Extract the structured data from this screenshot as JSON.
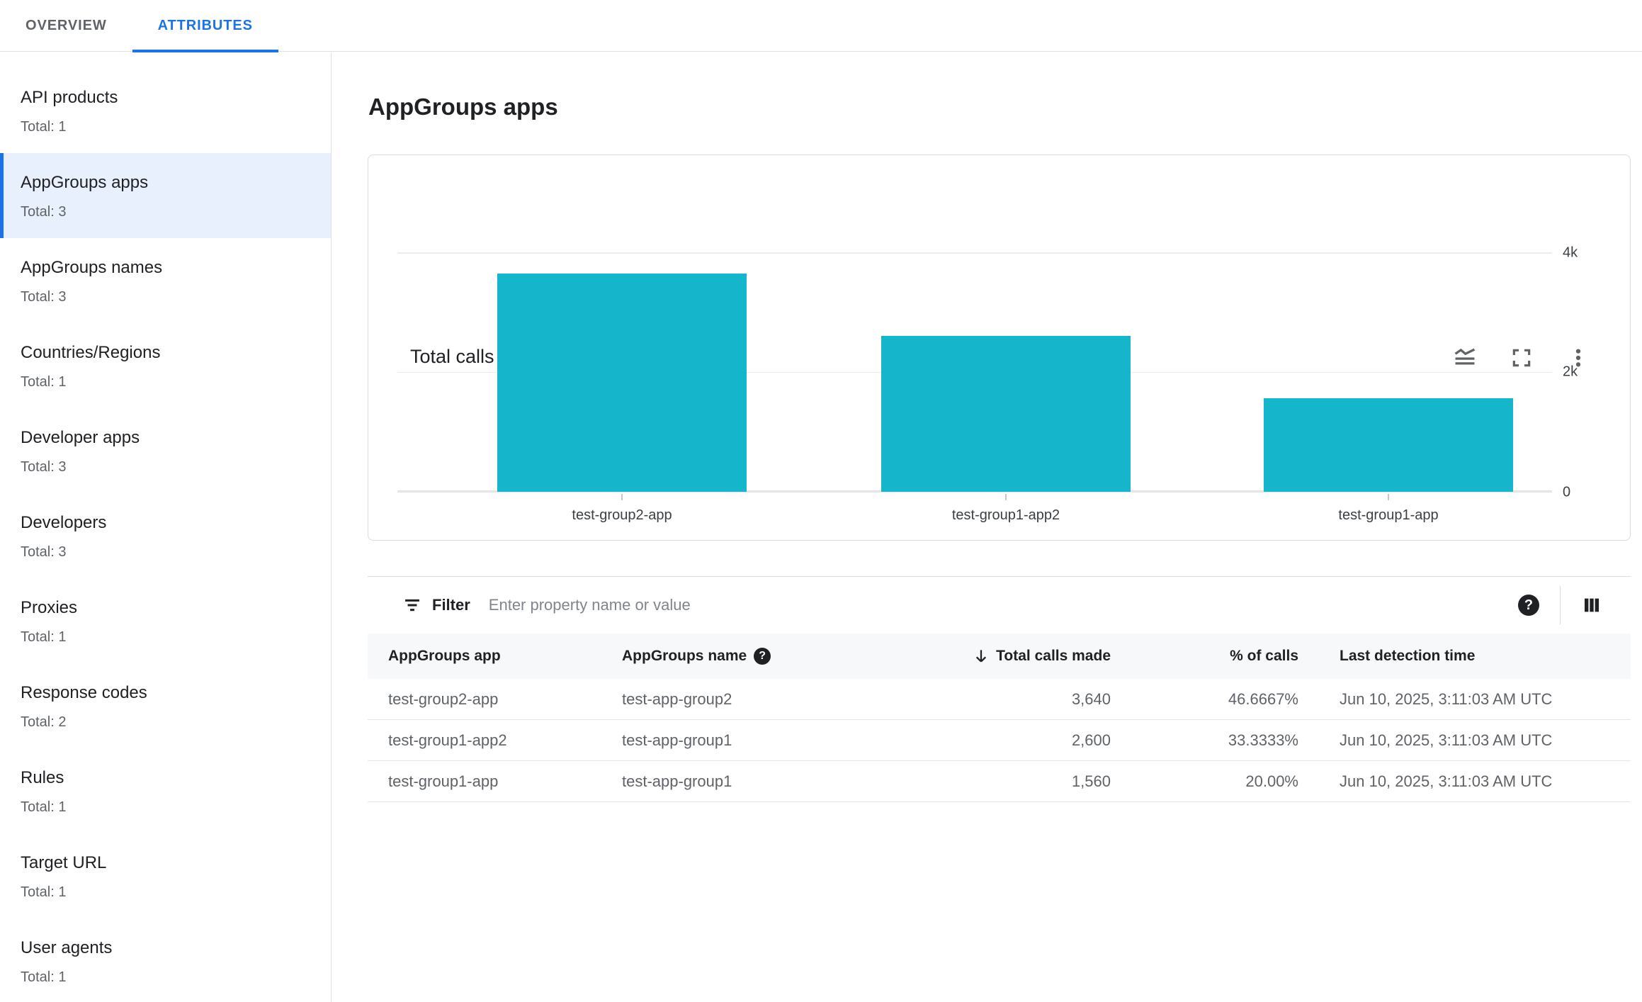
{
  "tabs": [
    {
      "label": "OVERVIEW",
      "active": false
    },
    {
      "label": "ATTRIBUTES",
      "active": true
    }
  ],
  "sidebar": {
    "items": [
      {
        "label": "API products",
        "total": "Total: 1",
        "selected": false
      },
      {
        "label": "AppGroups apps",
        "total": "Total: 3",
        "selected": true
      },
      {
        "label": "AppGroups names",
        "total": "Total: 3",
        "selected": false
      },
      {
        "label": "Countries/Regions",
        "total": "Total: 1",
        "selected": false
      },
      {
        "label": "Developer apps",
        "total": "Total: 3",
        "selected": false
      },
      {
        "label": "Developers",
        "total": "Total: 3",
        "selected": false
      },
      {
        "label": "Proxies",
        "total": "Total: 1",
        "selected": false
      },
      {
        "label": "Response codes",
        "total": "Total: 2",
        "selected": false
      },
      {
        "label": "Rules",
        "total": "Total: 1",
        "selected": false
      },
      {
        "label": "Target URL",
        "total": "Total: 1",
        "selected": false
      },
      {
        "label": "User agents",
        "total": "Total: 1",
        "selected": false
      }
    ]
  },
  "main": {
    "page_title": "AppGroups apps",
    "chart_card": {
      "title": "Total calls made",
      "icons": [
        "stacked-line-chart",
        "fullscreen",
        "more-vert"
      ]
    },
    "filter": {
      "label": "Filter",
      "placeholder": "Enter property name or value"
    },
    "table": {
      "columns": [
        "AppGroups app",
        "AppGroups name",
        "Total calls made",
        "% of calls",
        "Last detection time"
      ],
      "sorted_column": "Total calls made",
      "sort_direction": "descending",
      "rows": [
        {
          "app": "test-group2-app",
          "name": "test-app-group2",
          "calls": "3,640",
          "pct": "46.6667%",
          "time": "Jun 10, 2025, 3:11:03 AM UTC"
        },
        {
          "app": "test-group1-app2",
          "name": "test-app-group1",
          "calls": "2,600",
          "pct": "33.3333%",
          "time": "Jun 10, 2025, 3:11:03 AM UTC"
        },
        {
          "app": "test-group1-app",
          "name": "test-app-group1",
          "calls": "1,560",
          "pct": "20.00%",
          "time": "Jun 10, 2025, 3:11:03 AM UTC"
        }
      ]
    }
  },
  "chart_data": {
    "type": "bar",
    "title": "Total calls made",
    "categories": [
      "test-group2-app",
      "test-group1-app2",
      "test-group1-app"
    ],
    "values": [
      3640,
      2600,
      1560
    ],
    "xlabel": "",
    "ylabel": "",
    "ylim": [
      0,
      4000
    ],
    "yticks": [
      "4k",
      "2k",
      "0"
    ],
    "grid": true,
    "legend": false,
    "bar_color": "#15b5cb"
  },
  "colors": {
    "accent_blue": "#1a73e8",
    "selected_bg": "#e8f0fe",
    "bar_teal": "#15b5cb",
    "text_primary": "#202124",
    "text_secondary": "#5f6368",
    "border": "#dadce0"
  }
}
